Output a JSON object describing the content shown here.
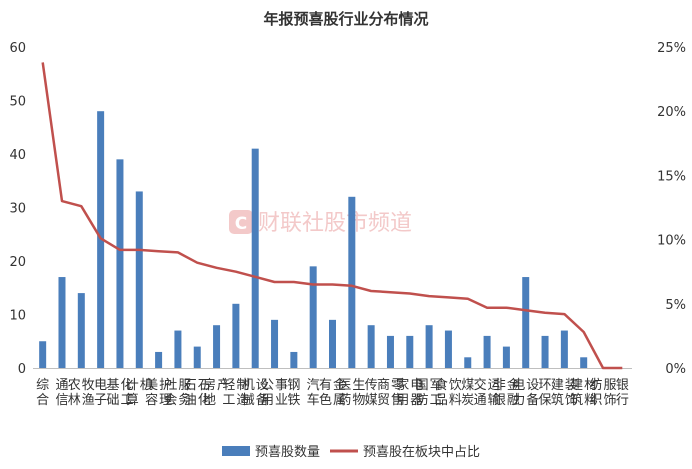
{
  "chart_data": {
    "type": "bar",
    "title": "年报预喜股行业分布情况",
    "categories": [
      "综合",
      "通信",
      "农林牧渔",
      "电子",
      "基础化工",
      "计算机",
      "美容护理",
      "社会服务",
      "石油石化",
      "房地产",
      "轻工制造",
      "机械设备",
      "公用事业",
      "钢铁",
      "汽车",
      "有色金属",
      "医药生物",
      "传媒",
      "商贸零售",
      "家用电器",
      "国防军工",
      "食品饮料",
      "煤炭",
      "交通运输",
      "非银金融",
      "电力设备",
      "环保",
      "建筑装饰",
      "建筑材料",
      "纺织服饰",
      "银行"
    ],
    "series": [
      {
        "name": "预喜股数量",
        "type": "bar",
        "axis": "left",
        "color": "#4a7ebb",
        "values": [
          5,
          17,
          14,
          48,
          39,
          33,
          3,
          7,
          4,
          8,
          12,
          41,
          9,
          3,
          19,
          9,
          32,
          8,
          6,
          6,
          8,
          7,
          2,
          6,
          4,
          17,
          6,
          7,
          2,
          0,
          0
        ]
      },
      {
        "name": "预喜股在板块中占比",
        "type": "line",
        "axis": "right",
        "color": "#c0504d",
        "values": [
          23.8,
          13.0,
          12.6,
          10.1,
          9.2,
          9.2,
          9.1,
          9.0,
          8.2,
          7.8,
          7.5,
          7.1,
          6.7,
          6.7,
          6.5,
          6.5,
          6.4,
          6.0,
          5.9,
          5.8,
          5.6,
          5.5,
          5.4,
          4.7,
          4.7,
          4.5,
          4.3,
          4.2,
          2.8,
          0,
          0
        ]
      }
    ],
    "y_left": {
      "min": 0,
      "max": 60,
      "ticks": [
        0,
        10,
        20,
        30,
        40,
        50,
        60
      ]
    },
    "y_right": {
      "min": 0,
      "max": 25,
      "ticks": [
        "0%",
        "5%",
        "10%",
        "15%",
        "20%",
        "25%"
      ]
    },
    "legend": {
      "position": "bottom"
    },
    "grid": false
  },
  "watermark": {
    "logo_letter": "C",
    "text": "财联社股市频道"
  }
}
